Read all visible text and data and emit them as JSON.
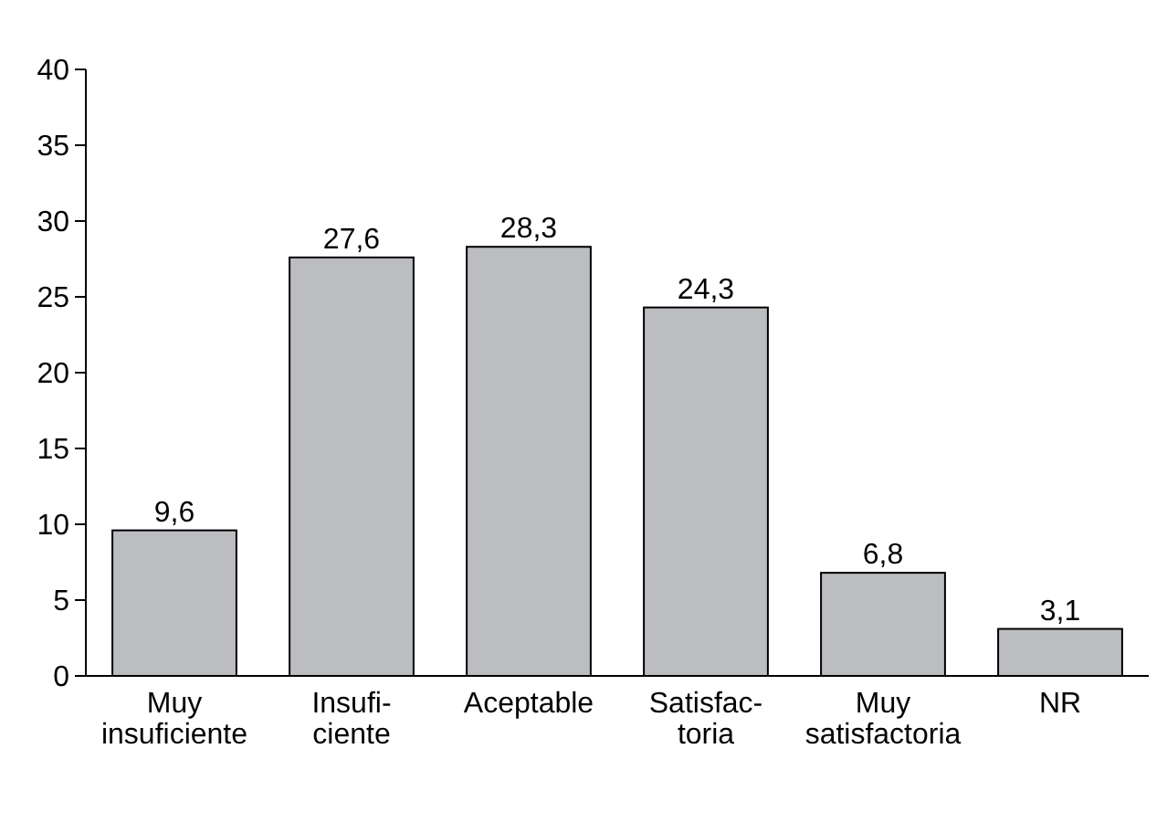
{
  "chart_data": {
    "type": "bar",
    "categories": [
      "Muy\ninsuficiente",
      "Insufi-\nciente",
      "Aceptable",
      "Satisfac-\ntoria",
      "Muy\nsatisfactoria",
      "NR"
    ],
    "values": [
      9.6,
      27.6,
      28.3,
      24.3,
      6.8,
      3.1
    ],
    "value_labels": [
      "9,6",
      "27,6",
      "28,3",
      "24,3",
      "6,8",
      "3,1"
    ],
    "color": "#bcbdc0",
    "ylim": [
      0,
      40
    ],
    "yticks": [
      0,
      5,
      10,
      15,
      20,
      25,
      30,
      35,
      40
    ],
    "grid": false
  }
}
